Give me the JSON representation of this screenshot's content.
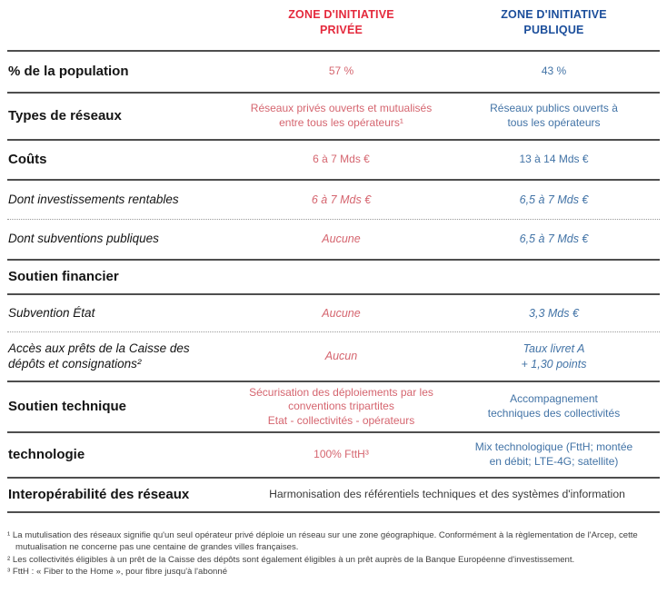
{
  "colors": {
    "private": "#e4293c",
    "public": "#1b4e9b",
    "private_value": "#d5656f",
    "public_value": "#4273a6"
  },
  "header": {
    "private": "ZONE D'INITIATIVE\nPRIVÉE",
    "public": "ZONE D'INITIATIVE\nPUBLIQUE"
  },
  "rows": [
    {
      "label": "% de la population",
      "private": "57 %",
      "public": "43 %"
    },
    {
      "label": "Types de réseaux",
      "private": "Réseaux privés ouverts et mutualisés\nentre tous les opérateurs¹",
      "public": "Réseaux publics ouverts à\ntous les opérateurs"
    },
    {
      "label": "Coûts",
      "private": "6 à 7 Mds €",
      "public": "13 à 14 Mds €"
    },
    {
      "label": "Dont investissements rentables",
      "private": "6 à 7 Mds €",
      "public": "6,5 à 7 Mds €"
    },
    {
      "label": "Dont subventions publiques",
      "private": "Aucune",
      "public": "6,5 à 7 Mds €"
    },
    {
      "label": "Soutien financier",
      "private": "",
      "public": ""
    },
    {
      "label": "Subvention État",
      "private": "Aucune",
      "public": "3,3 Mds €"
    },
    {
      "label": "Accès aux prêts de la Caisse des\ndépôts et consignations²",
      "private": "Aucun",
      "public": "Taux livret A\n+ 1,30 points"
    },
    {
      "label": "Soutien technique",
      "private": "Sécurisation des déploiements par les\nconventions tripartites\nEtat - collectivités - opérateurs",
      "public": "Accompagnement\ntechniques des collectivités"
    },
    {
      "label": "technologie",
      "private": "100% FttH³",
      "public": "Mix technologique (FttH; montée\nen débit; LTE-4G; satellite)"
    },
    {
      "label": "Interopérabilité des réseaux",
      "span": "Harmonisation des référentiels techniques et des systèmes d'information"
    }
  ],
  "footnotes": [
    "¹ La mutulisation des réseaux signifie qu'un seul opérateur privé déploie un réseau sur une zone géographique. Conformément à la règlementation de l'Arcep, cette mutualisation ne concerne pas une centaine de grandes villes françaises.",
    "² Les collectivités éligibles à un prêt de la Caisse des dépôts sont également éligibles à un prêt auprès de la Banque Européenne d'investissement.",
    "³ FttH : « Fiber to the Home », pour fibre jusqu'à l'abonné"
  ]
}
